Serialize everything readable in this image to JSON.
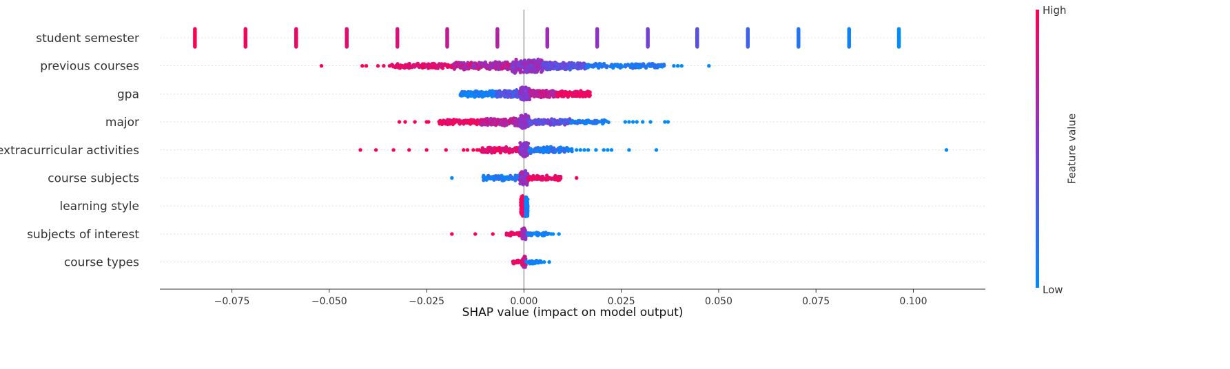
{
  "chart_data": {
    "type": "scatter",
    "subtype": "shap-beeswarm",
    "title": "",
    "xlabel": "SHAP value (impact on model output)",
    "ylabel": "",
    "xlim": [
      -0.0935,
      0.1185
    ],
    "xticks": [
      -0.075,
      -0.05,
      -0.025,
      0.0,
      0.025,
      0.05,
      0.075,
      0.1
    ],
    "xtick_labels": [
      "−0.075",
      "−0.050",
      "−0.025",
      "0.000",
      "0.025",
      "0.050",
      "0.075",
      "0.100"
    ],
    "grid": false,
    "features": [
      {
        "name": "student semester",
        "points": [
          {
            "x": -0.0845,
            "v": 1.0,
            "n": 28
          },
          {
            "x": -0.0715,
            "v": 0.96,
            "n": 34
          },
          {
            "x": -0.0585,
            "v": 0.92,
            "n": 34
          },
          {
            "x": -0.0455,
            "v": 0.88,
            "n": 34
          },
          {
            "x": -0.0325,
            "v": 0.84,
            "n": 26
          },
          {
            "x": -0.0197,
            "v": 0.76,
            "n": 34
          },
          {
            "x": -0.0068,
            "v": 0.7,
            "n": 34
          },
          {
            "x": 0.006,
            "v": 0.63,
            "n": 34
          },
          {
            "x": 0.0188,
            "v": 0.57,
            "n": 30
          },
          {
            "x": 0.0318,
            "v": 0.47,
            "n": 34
          },
          {
            "x": 0.0445,
            "v": 0.36,
            "n": 34
          },
          {
            "x": 0.0575,
            "v": 0.25,
            "n": 30
          },
          {
            "x": 0.0705,
            "v": 0.14,
            "n": 30
          },
          {
            "x": 0.0835,
            "v": 0.06,
            "n": 32
          },
          {
            "x": 0.0963,
            "v": 0.0,
            "n": 32
          }
        ]
      },
      {
        "name": "previous courses",
        "points": [
          {
            "x": -0.052,
            "v": 1.0
          },
          {
            "x": -0.0415,
            "v": 1.0
          },
          {
            "x": -0.0405,
            "v": 1.0
          },
          {
            "x": -0.0375,
            "v": 0.95
          },
          {
            "x": -0.036,
            "v": 0.95
          },
          {
            "x": -0.0345,
            "v": 0.95
          },
          {
            "x": 0.0385,
            "v": 0.0
          },
          {
            "x": 0.0395,
            "v": 0.0
          },
          {
            "x": 0.0405,
            "v": 0.0
          },
          {
            "x": 0.0475,
            "v": 0.0
          }
        ],
        "bands": [
          {
            "from": -0.034,
            "to": -0.018,
            "vmin": 0.8,
            "vmax": 1.0,
            "count": 160,
            "spread": 4
          },
          {
            "from": -0.018,
            "to": -0.003,
            "vmin": 0.55,
            "vmax": 0.9,
            "count": 260,
            "spread": 6
          },
          {
            "from": -0.003,
            "to": 0.005,
            "vmin": 0.4,
            "vmax": 0.7,
            "count": 320,
            "spread": 11
          },
          {
            "from": 0.005,
            "to": 0.016,
            "vmin": 0.25,
            "vmax": 0.55,
            "count": 220,
            "spread": 6
          },
          {
            "from": 0.016,
            "to": 0.036,
            "vmin": 0.0,
            "vmax": 0.25,
            "count": 140,
            "spread": 4
          }
        ]
      },
      {
        "name": "gpa",
        "points": [],
        "bands": [
          {
            "from": -0.0165,
            "to": -0.007,
            "vmin": 0.0,
            "vmax": 0.15,
            "count": 160,
            "spread": 5
          },
          {
            "from": -0.007,
            "to": -0.001,
            "vmin": 0.2,
            "vmax": 0.45,
            "count": 160,
            "spread": 6
          },
          {
            "from": -0.001,
            "to": 0.0015,
            "vmin": 0.45,
            "vmax": 0.6,
            "count": 110,
            "spread": 11
          },
          {
            "from": 0.0015,
            "to": 0.0085,
            "vmin": 0.65,
            "vmax": 0.85,
            "count": 180,
            "spread": 6
          },
          {
            "from": 0.0085,
            "to": 0.017,
            "vmin": 0.85,
            "vmax": 1.0,
            "count": 170,
            "spread": 5
          }
        ]
      },
      {
        "name": "major",
        "points": [
          {
            "x": -0.032,
            "v": 1.0
          },
          {
            "x": -0.0305,
            "v": 1.0
          },
          {
            "x": -0.028,
            "v": 1.0
          },
          {
            "x": -0.025,
            "v": 1.0
          },
          {
            "x": -0.0245,
            "v": 1.0
          },
          {
            "x": 0.026,
            "v": 0.0
          },
          {
            "x": 0.027,
            "v": 0.0
          },
          {
            "x": 0.028,
            "v": 0.0
          },
          {
            "x": 0.029,
            "v": 0.0
          },
          {
            "x": 0.0305,
            "v": 0.0
          },
          {
            "x": 0.0325,
            "v": 0.0
          },
          {
            "x": 0.0362,
            "v": 0.0
          },
          {
            "x": 0.037,
            "v": 0.0
          }
        ],
        "bands": [
          {
            "from": -0.022,
            "to": -0.011,
            "vmin": 0.85,
            "vmax": 1.0,
            "count": 120,
            "spread": 4
          },
          {
            "from": -0.011,
            "to": -0.001,
            "vmin": 0.6,
            "vmax": 0.85,
            "count": 200,
            "spread": 6
          },
          {
            "from": -0.001,
            "to": 0.0012,
            "vmin": 0.5,
            "vmax": 0.65,
            "count": 120,
            "spread": 11
          },
          {
            "from": 0.0012,
            "to": 0.012,
            "vmin": 0.25,
            "vmax": 0.55,
            "count": 180,
            "spread": 5
          },
          {
            "from": 0.012,
            "to": 0.022,
            "vmin": 0.0,
            "vmax": 0.2,
            "count": 80,
            "spread": 3
          }
        ]
      },
      {
        "name": "extracurricular activities",
        "points": [
          {
            "x": -0.042,
            "v": 1.0
          },
          {
            "x": -0.038,
            "v": 1.0
          },
          {
            "x": -0.0335,
            "v": 1.0
          },
          {
            "x": -0.0295,
            "v": 1.0
          },
          {
            "x": -0.025,
            "v": 1.0
          },
          {
            "x": -0.02,
            "v": 1.0
          },
          {
            "x": -0.0155,
            "v": 1.0
          },
          {
            "x": -0.0145,
            "v": 1.0
          },
          {
            "x": -0.013,
            "v": 1.0
          },
          {
            "x": -0.012,
            "v": 1.0
          },
          {
            "x": -0.0115,
            "v": 1.0
          },
          {
            "x": 0.0135,
            "v": 0.0
          },
          {
            "x": 0.0145,
            "v": 0.0
          },
          {
            "x": 0.0155,
            "v": 0.0
          },
          {
            "x": 0.0165,
            "v": 0.0
          },
          {
            "x": 0.0185,
            "v": 0.0
          },
          {
            "x": 0.0205,
            "v": 0.0
          },
          {
            "x": 0.0215,
            "v": 0.0
          },
          {
            "x": 0.0225,
            "v": 0.0
          },
          {
            "x": 0.027,
            "v": 0.0
          },
          {
            "x": 0.034,
            "v": 0.0
          },
          {
            "x": 0.1085,
            "v": 0.0
          }
        ],
        "bands": [
          {
            "from": -0.011,
            "to": -0.001,
            "vmin": 0.8,
            "vmax": 1.0,
            "count": 120,
            "spread": 5
          },
          {
            "from": -0.001,
            "to": 0.0012,
            "vmin": 0.45,
            "vmax": 0.7,
            "count": 150,
            "spread": 11
          },
          {
            "from": 0.0012,
            "to": 0.0125,
            "vmin": 0.0,
            "vmax": 0.25,
            "count": 120,
            "spread": 5
          }
        ]
      },
      {
        "name": "course subjects",
        "points": [
          {
            "x": -0.0185,
            "v": 0.0
          },
          {
            "x": 0.0135,
            "v": 1.0
          }
        ],
        "bands": [
          {
            "from": -0.0105,
            "to": -0.001,
            "vmin": 0.0,
            "vmax": 0.2,
            "count": 110,
            "spread": 4
          },
          {
            "from": -0.001,
            "to": 0.001,
            "vmin": 0.45,
            "vmax": 0.75,
            "count": 120,
            "spread": 11
          },
          {
            "from": 0.001,
            "to": 0.0095,
            "vmin": 0.85,
            "vmax": 1.0,
            "count": 110,
            "spread": 4
          }
        ]
      },
      {
        "name": "learning style",
        "points": [],
        "bands": [
          {
            "from": -0.0008,
            "to": -0.0002,
            "vmin": 0.9,
            "vmax": 1.0,
            "count": 90,
            "spread": 16
          },
          {
            "from": 0.0004,
            "to": 0.001,
            "vmin": 0.0,
            "vmax": 0.1,
            "count": 90,
            "spread": 16
          }
        ]
      },
      {
        "name": "subjects of interest",
        "points": [
          {
            "x": -0.0185,
            "v": 1.0
          },
          {
            "x": -0.0125,
            "v": 1.0
          },
          {
            "x": -0.008,
            "v": 1.0
          },
          {
            "x": 0.007,
            "v": 0.0
          },
          {
            "x": 0.0075,
            "v": 0.0
          },
          {
            "x": 0.009,
            "v": 0.0
          }
        ],
        "bands": [
          {
            "from": -0.0045,
            "to": -0.0005,
            "vmin": 0.85,
            "vmax": 1.0,
            "count": 40,
            "spread": 3
          },
          {
            "from": -0.0005,
            "to": 0.0005,
            "vmin": 0.5,
            "vmax": 0.75,
            "count": 60,
            "spread": 10
          },
          {
            "from": 0.0005,
            "to": 0.0065,
            "vmin": 0.0,
            "vmax": 0.15,
            "count": 40,
            "spread": 3
          }
        ]
      },
      {
        "name": "course types",
        "points": [
          {
            "x": 0.0052,
            "v": 0.0
          },
          {
            "x": 0.0065,
            "v": 0.0
          }
        ],
        "bands": [
          {
            "from": -0.003,
            "to": -0.0005,
            "vmin": 0.9,
            "vmax": 1.0,
            "count": 40,
            "spread": 3
          },
          {
            "from": -0.0005,
            "to": 0.0005,
            "vmin": 0.6,
            "vmax": 0.95,
            "count": 60,
            "spread": 10
          },
          {
            "from": 0.0005,
            "to": 0.0045,
            "vmin": 0.0,
            "vmax": 0.1,
            "count": 40,
            "spread": 3
          }
        ]
      }
    ],
    "colorbar": {
      "label": "Feature value",
      "high_label": "High",
      "low_label": "Low",
      "low_color": "#008bfb",
      "mid_color": "#7c3bd6",
      "high_color": "#ff0051"
    },
    "zero_line_color": "#999999",
    "row_grid_color": "#cccccc"
  }
}
